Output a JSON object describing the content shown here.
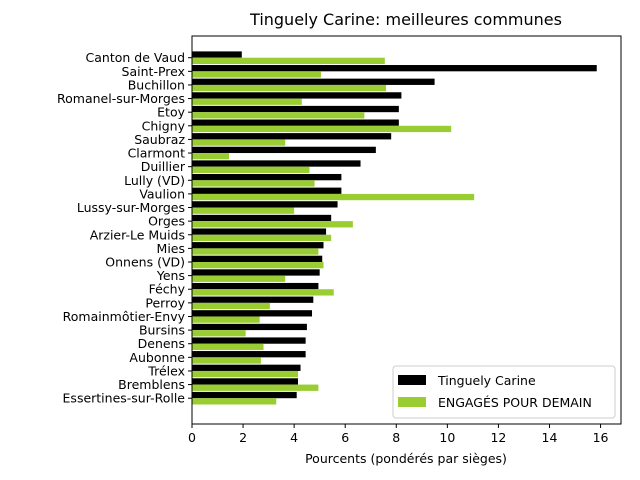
{
  "chart_data": {
    "type": "bar",
    "orientation": "horizontal",
    "title": "Tinguely Carine: meilleures communes",
    "xlabel": "Pourcents (pondérés par sièges)",
    "ylabel": "",
    "xlim": [
      0,
      16.8
    ],
    "xticks": [
      0,
      2,
      4,
      6,
      8,
      10,
      12,
      14,
      16
    ],
    "grid": false,
    "legend_position": "bottom-right",
    "categories": [
      "Canton de Vaud",
      "Saint-Prex",
      "Buchillon",
      "Romanel-sur-Morges",
      "Etoy",
      "Chigny",
      "Saubraz",
      "Clarmont",
      "Duillier",
      "Lully (VD)",
      "Vaulion",
      "Lussy-sur-Morges",
      "Orges",
      "Arzier-Le Muids",
      "Mies",
      "Onnens (VD)",
      "Yens",
      "Féchy",
      "Perroy",
      "Romainmôtier-Envy",
      "Bursins",
      "Denens",
      "Aubonne",
      "Trélex",
      "Bremblens",
      "Essertines-sur-Rolle"
    ],
    "series": [
      {
        "name": "Tinguely Carine",
        "color": "#000000",
        "values": [
          1.95,
          15.85,
          9.5,
          8.2,
          8.1,
          8.1,
          7.8,
          7.2,
          6.6,
          5.85,
          5.85,
          5.7,
          5.45,
          5.25,
          5.15,
          5.1,
          5.0,
          4.95,
          4.75,
          4.7,
          4.5,
          4.45,
          4.45,
          4.25,
          4.15,
          4.1
        ]
      },
      {
        "name": "ENGAGÉS POUR DEMAIN",
        "color": "#9acd32",
        "values": [
          7.55,
          5.05,
          7.6,
          4.3,
          6.75,
          10.15,
          3.65,
          1.45,
          4.6,
          4.8,
          11.05,
          4.0,
          6.3,
          5.45,
          4.95,
          5.15,
          3.65,
          5.55,
          3.05,
          2.65,
          2.1,
          2.8,
          2.7,
          4.15,
          4.95,
          3.3
        ]
      }
    ]
  }
}
